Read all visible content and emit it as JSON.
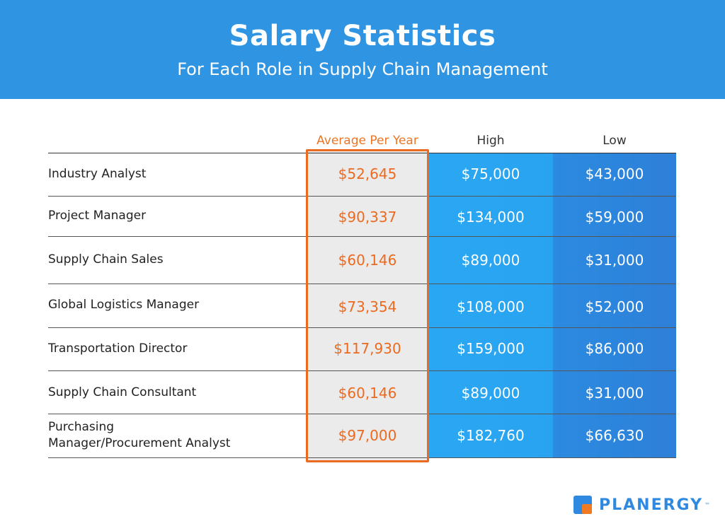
{
  "header": {
    "title": "Salary Statistics",
    "subtitle": "For Each Role in Supply Chain Management"
  },
  "brand": {
    "name": "PLANERGY",
    "trademark": "™"
  },
  "colors": {
    "header_bg": "#2f95e3",
    "average_accent": "#ec6a1f",
    "high_bg": "#29a3f0",
    "low_bg": "#2e80d9"
  },
  "chart_data": {
    "type": "table",
    "columns": [
      "",
      "Average Per Year",
      "High",
      "Low"
    ],
    "rows": [
      {
        "role": [
          "Industry Analyst"
        ],
        "average": "$52,645",
        "high": "$75,000",
        "low": "$43,000"
      },
      {
        "role": [
          "Project Manager"
        ],
        "average": "$90,337",
        "high": "$134,000",
        "low": "$59,000"
      },
      {
        "role": [
          "Supply Chain Sales"
        ],
        "average": "$60,146",
        "high": "$89,000",
        "low": "$31,000"
      },
      {
        "role": [
          "Global Logistics Manager"
        ],
        "average": "$73,354",
        "high": "$108,000",
        "low": "$52,000"
      },
      {
        "role": [
          "Transportation Director"
        ],
        "average": "$117,930",
        "high": "$159,000",
        "low": "$86,000"
      },
      {
        "role": [
          "Supply Chain Consultant"
        ],
        "average": "$60,146",
        "high": "$89,000",
        "low": "$31,000"
      },
      {
        "role": [
          "Purchasing",
          "Manager/Procurement Analyst"
        ],
        "average": "$97,000",
        "high": "$182,760",
        "low": "$66,630"
      }
    ]
  }
}
